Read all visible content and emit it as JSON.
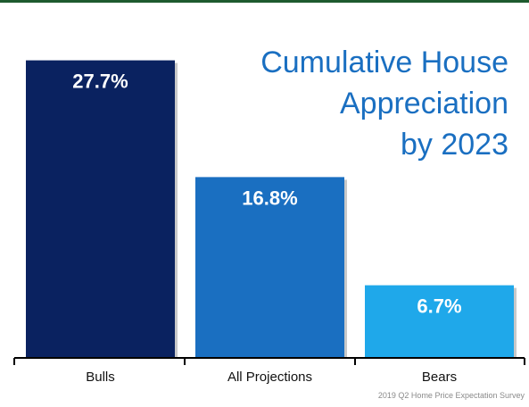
{
  "chart_data": {
    "type": "bar",
    "title_lines": [
      "Cumulative House",
      "Appreciation",
      "by 2023"
    ],
    "categories": [
      "Bulls",
      "All Projections",
      "Bears"
    ],
    "values": [
      27.7,
      16.8,
      6.7
    ],
    "value_labels": [
      "27.7%",
      "16.8%",
      "6.7%"
    ],
    "bar_colors": [
      "#0a2260",
      "#1a6fc1",
      "#1fa8ea"
    ],
    "ylim": [
      0,
      29
    ],
    "grid": false,
    "legend": "none",
    "source": "2019 Q2 Home Price Expectation Survey"
  },
  "theme": {
    "top_border_color": "#1e5a2e",
    "title_color": "#1a6fc1",
    "label_color": "#ffffff",
    "axis_color": "#000000",
    "source_color": "#8a8a8a"
  }
}
